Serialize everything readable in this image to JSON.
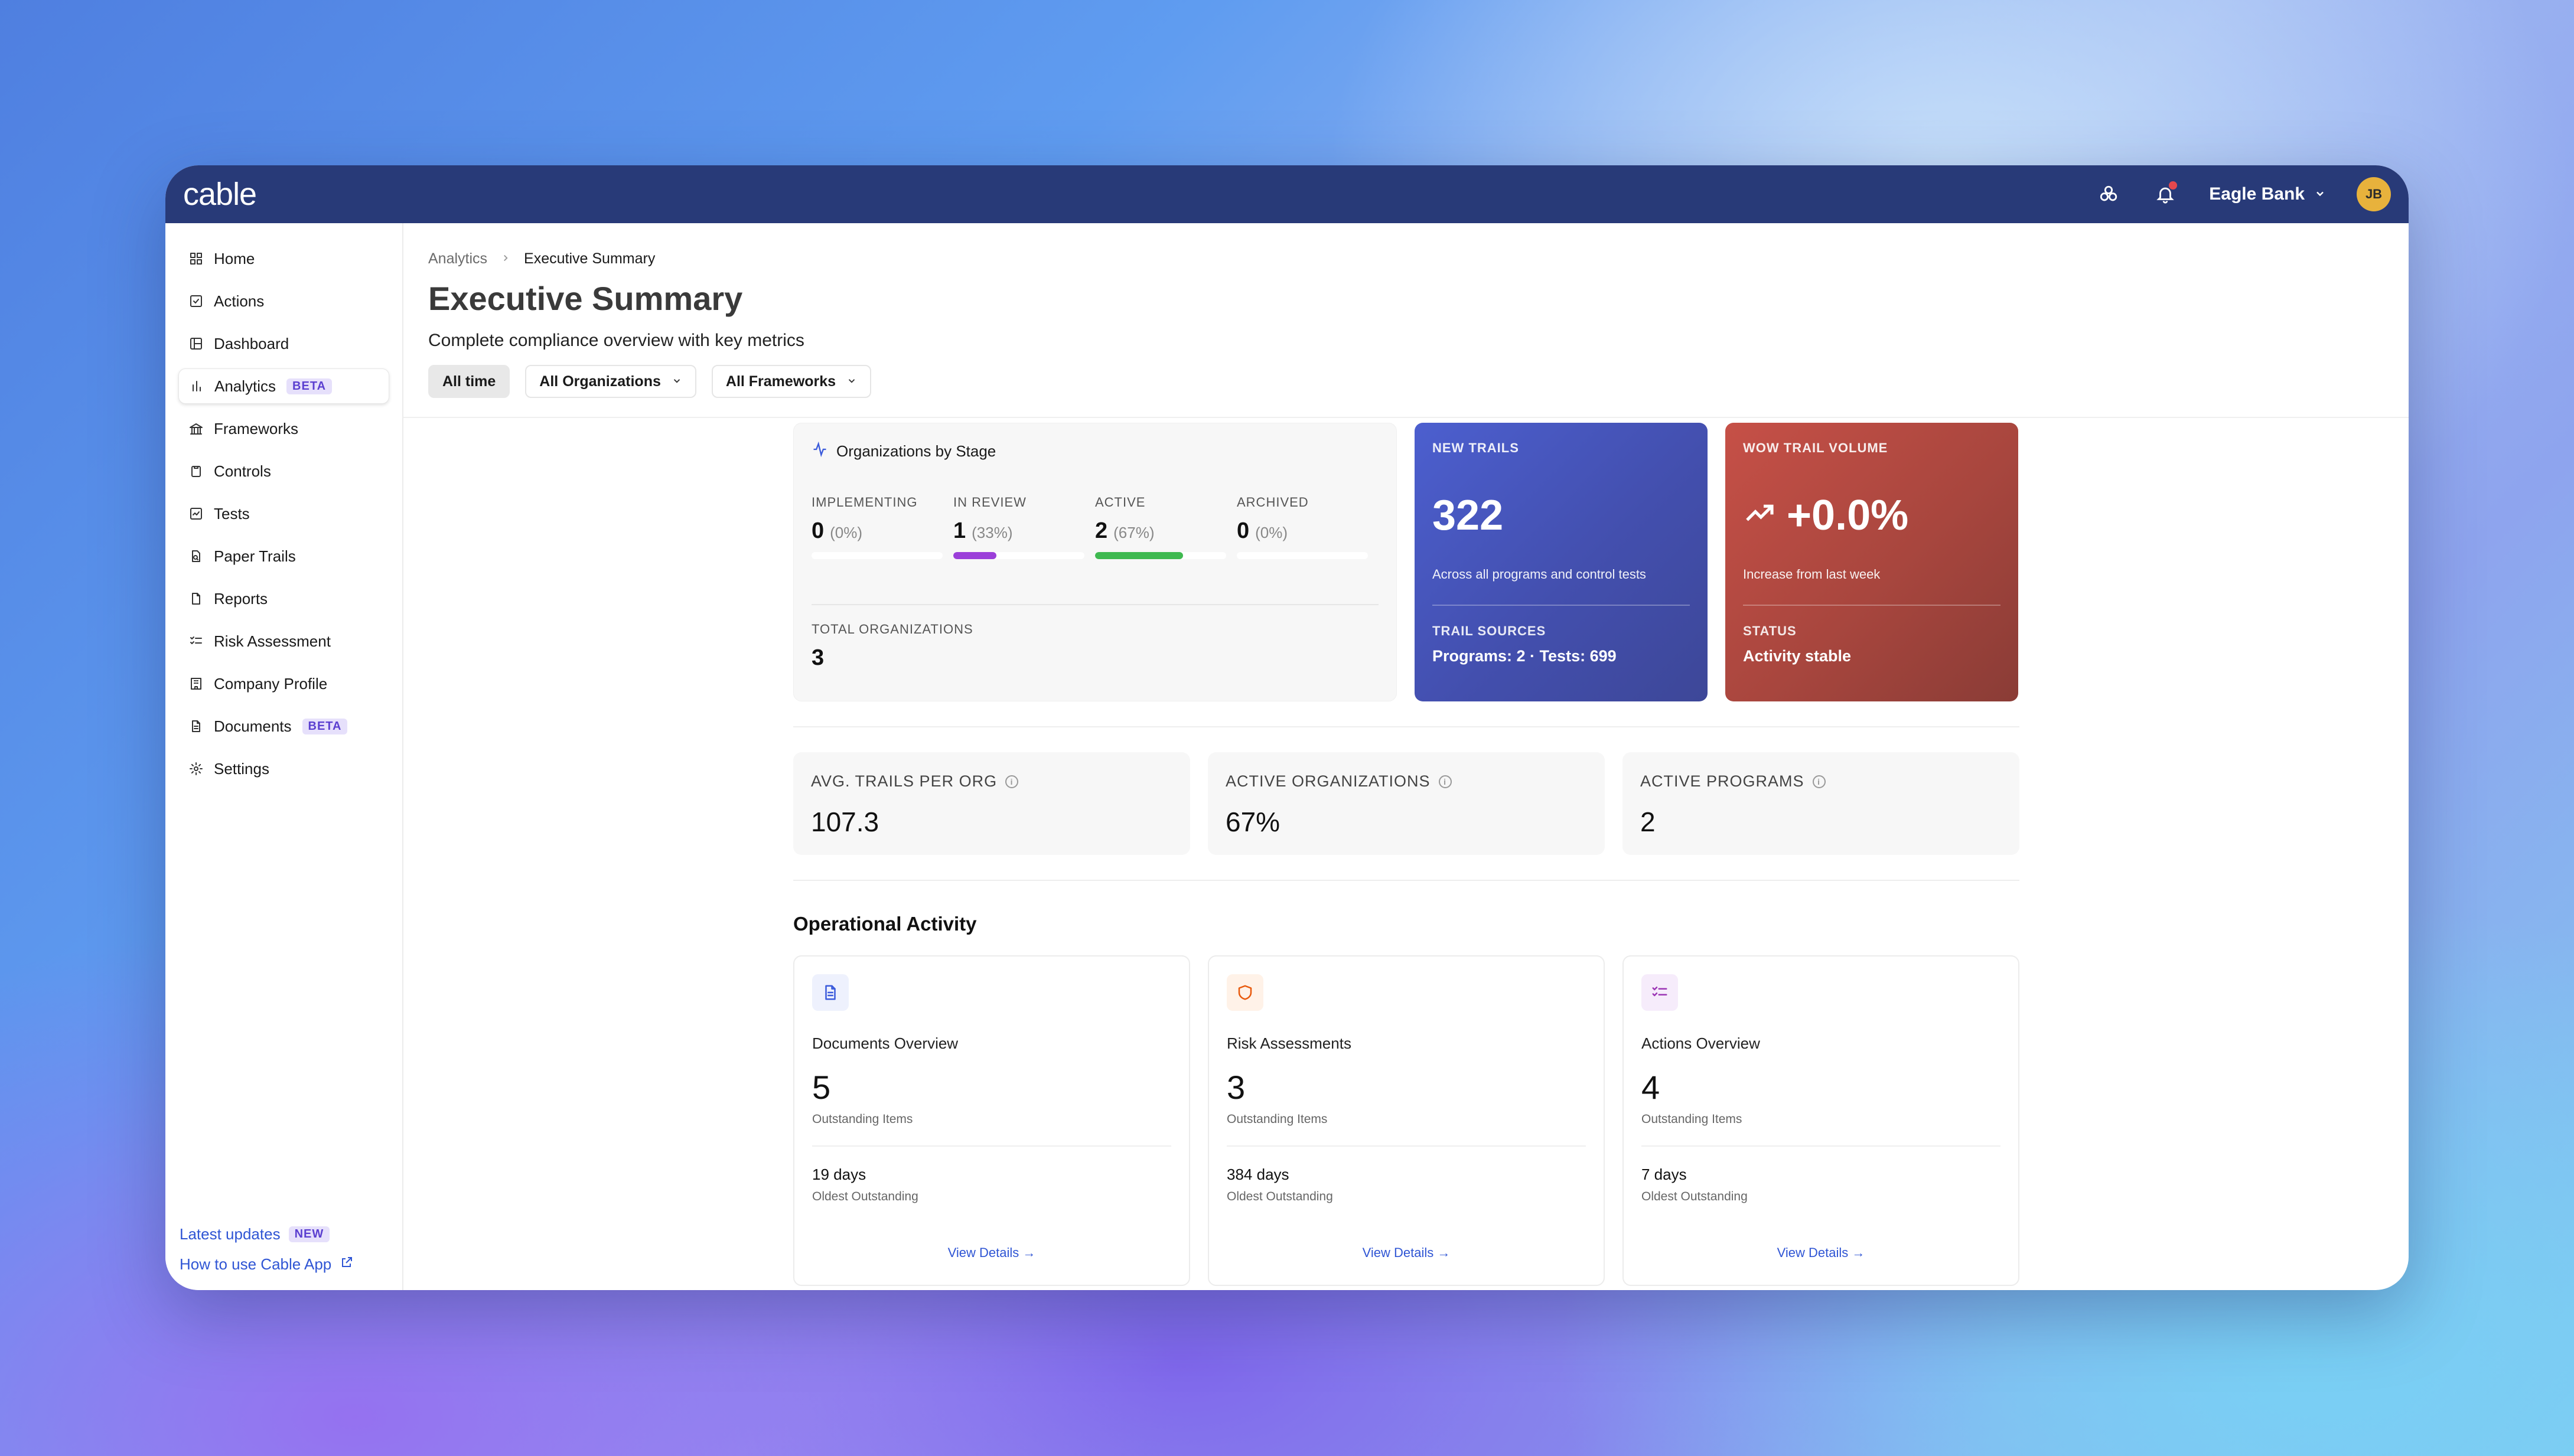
{
  "app": {
    "logo": "cable"
  },
  "topbar": {
    "org_name": "Eagle Bank",
    "avatar_initials": "JB"
  },
  "sidebar": {
    "items": [
      {
        "label": "Home",
        "icon": "grid-icon"
      },
      {
        "label": "Actions",
        "icon": "checkbox-icon"
      },
      {
        "label": "Dashboard",
        "icon": "layout-icon"
      },
      {
        "label": "Analytics",
        "icon": "bar-chart-icon",
        "badge": "BETA",
        "active": true
      },
      {
        "label": "Frameworks",
        "icon": "landmark-icon"
      },
      {
        "label": "Controls",
        "icon": "clipboard-icon"
      },
      {
        "label": "Tests",
        "icon": "test-icon"
      },
      {
        "label": "Paper Trails",
        "icon": "file-search-icon"
      },
      {
        "label": "Reports",
        "icon": "file-icon"
      },
      {
        "label": "Risk Assessment",
        "icon": "list-check-icon"
      },
      {
        "label": "Company Profile",
        "icon": "building-icon"
      },
      {
        "label": "Documents",
        "icon": "document-icon",
        "badge": "BETA"
      },
      {
        "label": "Settings",
        "icon": "gear-icon"
      }
    ],
    "latest_updates": "Latest updates",
    "latest_badge": "NEW",
    "how_to": "How to use Cable App"
  },
  "header": {
    "breadcrumb_root": "Analytics",
    "breadcrumb_current": "Executive Summary",
    "title": "Executive Summary",
    "subtitle": "Complete compliance overview with key metrics",
    "filters": [
      "All time",
      "All Organizations",
      "All Frameworks"
    ]
  },
  "stages": {
    "title": "Organizations by Stage",
    "items": [
      {
        "label": "IMPLEMENTING",
        "value": "0",
        "pct": "(0%)",
        "fill": 0,
        "color": "#c7c7c7"
      },
      {
        "label": "IN REVIEW",
        "value": "1",
        "pct": "(33%)",
        "fill": 0.33,
        "color": "#9b3fd9"
      },
      {
        "label": "ACTIVE",
        "value": "2",
        "pct": "(67%)",
        "fill": 0.67,
        "color": "#3fb950"
      },
      {
        "label": "ARCHIVED",
        "value": "0",
        "pct": "(0%)",
        "fill": 0,
        "color": "#c7c7c7"
      }
    ],
    "total_label": "TOTAL ORGANIZATIONS",
    "total_value": "3"
  },
  "new_trails": {
    "label": "NEW TRAILS",
    "value": "322",
    "desc": "Across all programs and control tests",
    "sources_label": "TRAIL SOURCES",
    "sources_value": "Programs: 2 · Tests: 699",
    "color": "#4c5fcf"
  },
  "wow": {
    "label": "WOW TRAIL VOLUME",
    "value": "+0.0%",
    "desc": "Increase from last week",
    "status_label": "STATUS",
    "status_value": "Activity stable",
    "color": "#c65047"
  },
  "metrics": [
    {
      "label": "AVG. TRAILS PER ORG",
      "value": "107.3"
    },
    {
      "label": "ACTIVE ORGANIZATIONS",
      "value": "67%"
    },
    {
      "label": "ACTIVE PROGRAMS",
      "value": "2"
    }
  ],
  "operational": {
    "title": "Operational Activity",
    "cards": [
      {
        "title": "Documents Overview",
        "value": "5",
        "sub": "Outstanding Items",
        "days": "19 days",
        "days_label": "Oldest Outstanding",
        "link": "View Details →",
        "icon": "document-icon",
        "icon_color": "#3b5bdb",
        "icon_bg": "#eef1fd"
      },
      {
        "title": "Risk Assessments",
        "value": "3",
        "sub": "Outstanding Items",
        "days": "384 days",
        "days_label": "Oldest Outstanding",
        "link": "View Details →",
        "icon": "shield-icon",
        "icon_color": "#e8590c",
        "icon_bg": "#fff2e8"
      },
      {
        "title": "Actions Overview",
        "value": "4",
        "sub": "Outstanding Items",
        "days": "7 days",
        "days_label": "Oldest Outstanding",
        "link": "View Details →",
        "icon": "list-check-icon",
        "icon_color": "#9c36b5",
        "icon_bg": "#f6ecfb"
      }
    ]
  }
}
